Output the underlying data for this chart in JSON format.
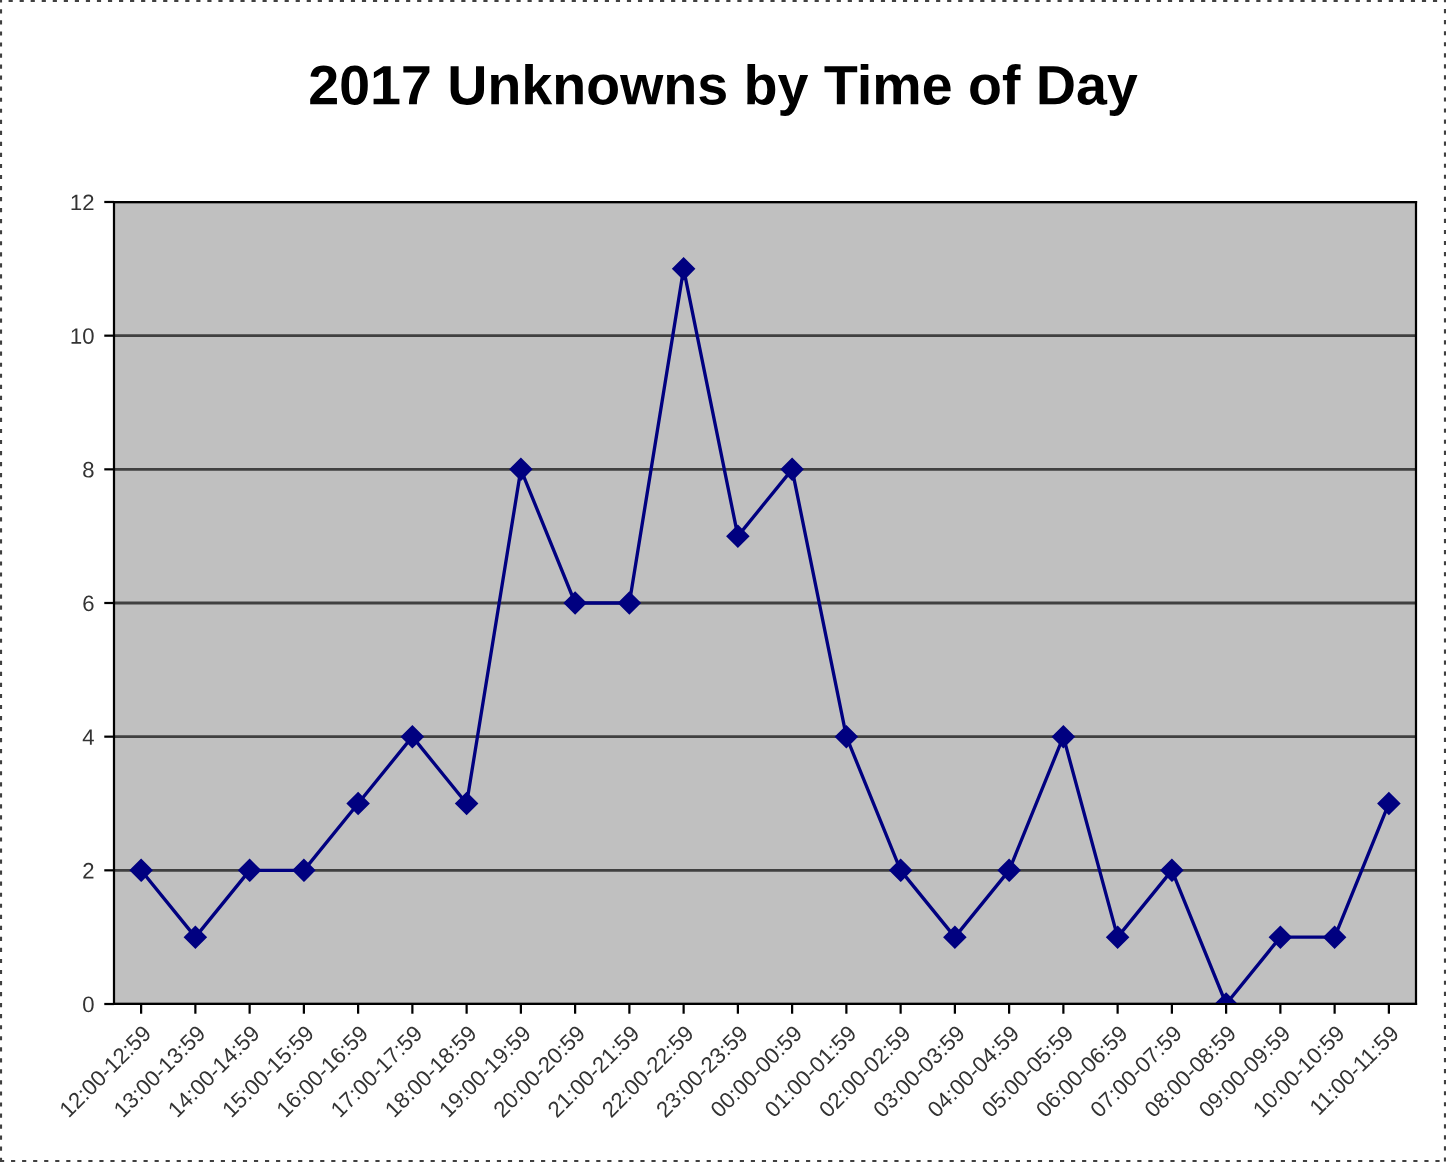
{
  "chart_data": {
    "type": "line",
    "title": "2017 Unknowns by Time of Day",
    "categories": [
      "12:00-12:59",
      "13:00-13:59",
      "14:00-14:59",
      "15:00-15:59",
      "16:00-16:59",
      "17:00-17:59",
      "18:00-18:59",
      "19:00-19:59",
      "20:00-20:59",
      "21:00-21:59",
      "22:00-22:59",
      "23:00-23:59",
      "00:00-00:59",
      "01:00-01:59",
      "02:00-02:59",
      "03:00-03:59",
      "04:00-04:59",
      "05:00-05:59",
      "06:00-06:59",
      "07:00-07:59",
      "08:00-08:59",
      "09:00-09:59",
      "10:00-10:59",
      "11:00-11:59"
    ],
    "series": [
      {
        "color": "#000080",
        "values": [
          2,
          1,
          2,
          2,
          3,
          4,
          3,
          8,
          6,
          6,
          11,
          7,
          8,
          4,
          2,
          1,
          2,
          4,
          1,
          2,
          0,
          1,
          1,
          3
        ]
      }
    ],
    "ylim": [
      0,
      12
    ],
    "yticks": [
      0,
      2,
      4,
      6,
      8,
      10,
      12
    ],
    "grid": "y",
    "marker": "diamond",
    "line_style": "solid",
    "legend": false
  }
}
